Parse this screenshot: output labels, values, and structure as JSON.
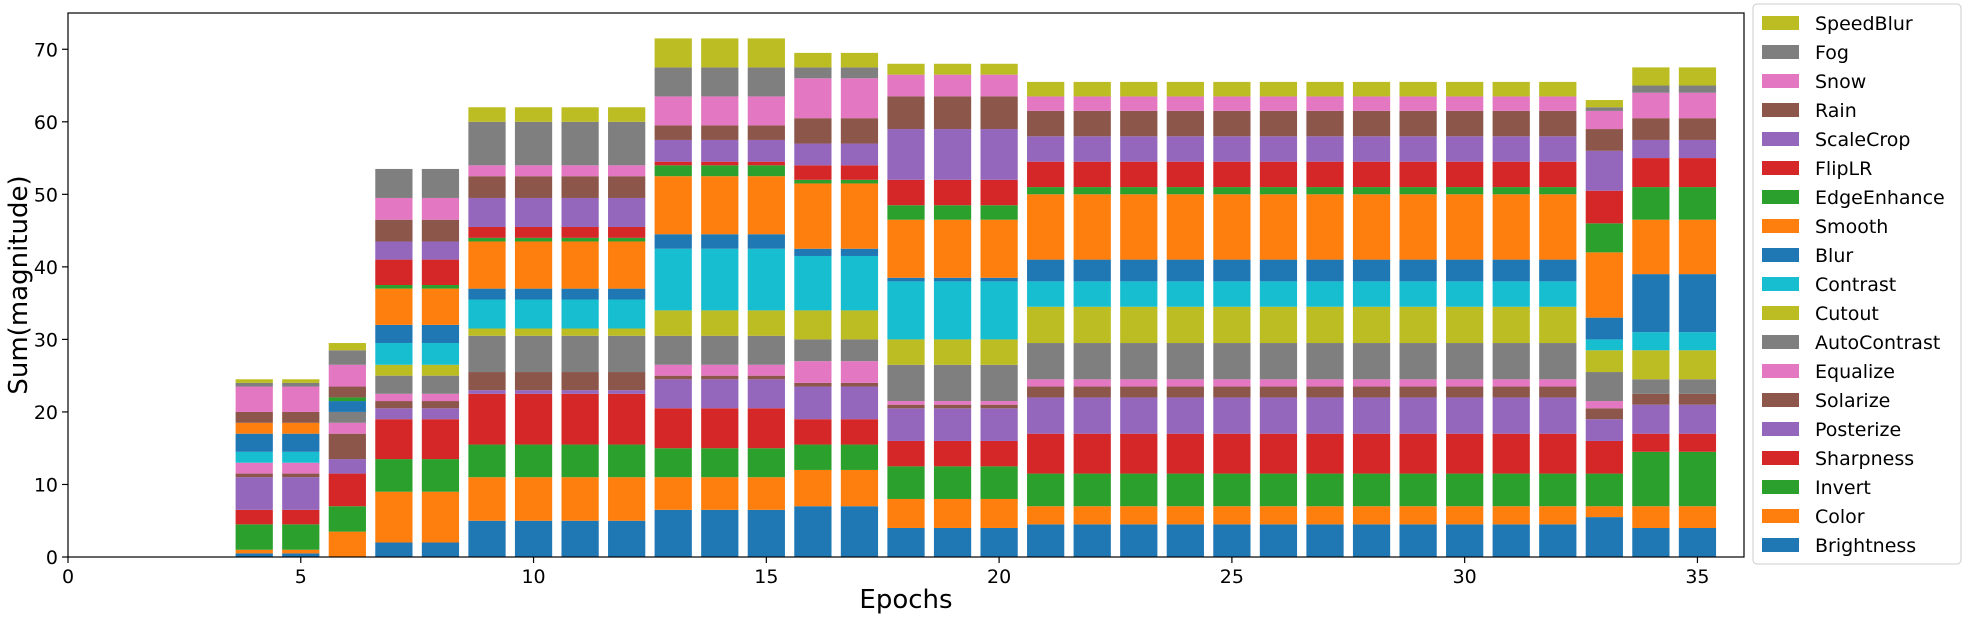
{
  "chart_data": {
    "type": "bar",
    "stacked": true,
    "title": "",
    "xlabel": "Epochs",
    "ylabel": "Sum(magnitude)",
    "xlim": [
      0,
      36
    ],
    "ylim": [
      0,
      75
    ],
    "xticks": [
      0,
      5,
      10,
      15,
      20,
      25,
      30,
      35
    ],
    "yticks": [
      0,
      10,
      20,
      30,
      40,
      50,
      60,
      70
    ],
    "legend_position": "outside-right",
    "grid": false,
    "x": [
      4,
      5,
      6,
      7,
      8,
      9,
      10,
      11,
      12,
      13,
      14,
      15,
      16,
      17,
      18,
      19,
      20,
      21,
      22,
      23,
      24,
      25,
      26,
      27,
      28,
      29,
      30,
      31,
      32,
      33,
      34,
      35
    ],
    "series": [
      {
        "name": "Brightness",
        "color": "#1f77b4",
        "values": [
          0.5,
          0.5,
          0,
          2,
          2,
          5,
          5,
          5,
          5,
          6.5,
          6.5,
          6.5,
          7,
          7,
          4,
          4,
          4,
          4.5,
          4.5,
          4.5,
          4.5,
          4.5,
          4.5,
          4.5,
          4.5,
          4.5,
          4.5,
          4.5,
          4.5,
          5.5,
          4,
          4
        ]
      },
      {
        "name": "Color",
        "color": "#ff7f0e",
        "values": [
          0.5,
          0.5,
          3.5,
          7,
          7,
          6,
          6,
          6,
          6,
          4.5,
          4.5,
          4.5,
          5,
          5,
          4,
          4,
          4,
          2.5,
          2.5,
          2.5,
          2.5,
          2.5,
          2.5,
          2.5,
          2.5,
          2.5,
          2.5,
          2.5,
          2.5,
          1.5,
          3,
          3
        ]
      },
      {
        "name": "Invert",
        "color": "#2ca02c",
        "values": [
          3.5,
          3.5,
          3.5,
          4.5,
          4.5,
          4.5,
          4.5,
          4.5,
          4.5,
          4,
          4,
          4,
          3.5,
          3.5,
          4.5,
          4.5,
          4.5,
          4.5,
          4.5,
          4.5,
          4.5,
          4.5,
          4.5,
          4.5,
          4.5,
          4.5,
          4.5,
          4.5,
          4.5,
          4.5,
          7.5,
          7.5
        ]
      },
      {
        "name": "Sharpness",
        "color": "#d62728",
        "values": [
          2,
          2,
          4.5,
          5.5,
          5.5,
          7,
          7,
          7,
          7,
          5.5,
          5.5,
          5.5,
          3.5,
          3.5,
          3.5,
          3.5,
          3.5,
          5.5,
          5.5,
          5.5,
          5.5,
          5.5,
          5.5,
          5.5,
          5.5,
          5.5,
          5.5,
          5.5,
          5.5,
          4.5,
          2.5,
          2.5
        ]
      },
      {
        "name": "Posterize",
        "color": "#9467bd",
        "values": [
          4.5,
          4.5,
          2,
          1.5,
          1.5,
          0.5,
          0.5,
          0.5,
          0.5,
          4,
          4,
          4,
          4.5,
          4.5,
          4.5,
          4.5,
          4.5,
          5,
          5,
          5,
          5,
          5,
          5,
          5,
          5,
          5,
          5,
          5,
          5,
          3,
          4,
          4
        ]
      },
      {
        "name": "Solarize",
        "color": "#8c564b",
        "values": [
          0.5,
          0.5,
          3.5,
          1,
          1,
          2.5,
          2.5,
          2.5,
          2.5,
          0.5,
          0.5,
          0.5,
          0.5,
          0.5,
          0.5,
          0.5,
          0.5,
          1.5,
          1.5,
          1.5,
          1.5,
          1.5,
          1.5,
          1.5,
          1.5,
          1.5,
          1.5,
          1.5,
          1.5,
          1.5,
          1.5,
          1.5
        ]
      },
      {
        "name": "Equalize",
        "color": "#e377c2",
        "values": [
          1.5,
          1.5,
          1.5,
          1,
          1,
          0,
          0,
          0,
          0,
          1.5,
          1.5,
          1.5,
          3,
          3,
          0.5,
          0.5,
          0.5,
          1,
          1,
          1,
          1,
          1,
          1,
          1,
          1,
          1,
          1,
          1,
          1,
          1,
          0,
          0
        ]
      },
      {
        "name": "AutoContrast",
        "color": "#7f7f7f",
        "values": [
          0,
          0,
          1.5,
          2.5,
          2.5,
          5,
          5,
          5,
          5,
          4,
          4,
          4,
          3,
          3,
          5,
          5,
          5,
          5,
          5,
          5,
          5,
          5,
          5,
          5,
          5,
          5,
          5,
          5,
          5,
          4,
          2,
          2
        ]
      },
      {
        "name": "Cutout",
        "color": "#bcbd22",
        "values": [
          0,
          0,
          0,
          1.5,
          1.5,
          1,
          1,
          1,
          1,
          3.5,
          3.5,
          3.5,
          4,
          4,
          3.5,
          3.5,
          3.5,
          5,
          5,
          5,
          5,
          5,
          5,
          5,
          5,
          5,
          5,
          5,
          5,
          3,
          4,
          4
        ]
      },
      {
        "name": "Contrast",
        "color": "#17becf",
        "values": [
          1.5,
          1.5,
          0,
          3,
          3,
          4,
          4,
          4,
          4,
          8.5,
          8.5,
          8.5,
          7.5,
          7.5,
          8,
          8,
          8,
          3.5,
          3.5,
          3.5,
          3.5,
          3.5,
          3.5,
          3.5,
          3.5,
          3.5,
          3.5,
          3.5,
          3.5,
          1.5,
          2.5,
          2.5
        ]
      },
      {
        "name": "Blur",
        "color": "#1f77b4",
        "values": [
          2.5,
          2.5,
          1.5,
          2.5,
          2.5,
          1.5,
          1.5,
          1.5,
          1.5,
          2,
          2,
          2,
          1,
          1,
          0.5,
          0.5,
          0.5,
          3,
          3,
          3,
          3,
          3,
          3,
          3,
          3,
          3,
          3,
          3,
          3,
          3,
          8,
          8
        ]
      },
      {
        "name": "Smooth",
        "color": "#ff7f0e",
        "values": [
          1.5,
          1.5,
          0,
          5,
          5,
          6.5,
          6.5,
          6.5,
          6.5,
          8,
          8,
          8,
          9,
          9,
          8,
          8,
          8,
          9,
          9,
          9,
          9,
          9,
          9,
          9,
          9,
          9,
          9,
          9,
          9,
          9,
          7.5,
          7.5
        ]
      },
      {
        "name": "EdgeEnhance",
        "color": "#2ca02c",
        "values": [
          0,
          0,
          0.5,
          0.5,
          0.5,
          0.5,
          0.5,
          0.5,
          0.5,
          1.5,
          1.5,
          1.5,
          0.5,
          0.5,
          2,
          2,
          2,
          1,
          1,
          1,
          1,
          1,
          1,
          1,
          1,
          1,
          1,
          1,
          1,
          4,
          4.5,
          4.5
        ]
      },
      {
        "name": "FlipLR",
        "color": "#d62728",
        "values": [
          0,
          0,
          0,
          3.5,
          3.5,
          1.5,
          1.5,
          1.5,
          1.5,
          0.5,
          0.5,
          0.5,
          2,
          2,
          3.5,
          3.5,
          3.5,
          3.5,
          3.5,
          3.5,
          3.5,
          3.5,
          3.5,
          3.5,
          3.5,
          3.5,
          3.5,
          3.5,
          3.5,
          4.5,
          4,
          4
        ]
      },
      {
        "name": "ScaleCrop",
        "color": "#9467bd",
        "values": [
          0,
          0,
          0,
          2.5,
          2.5,
          4,
          4,
          4,
          4,
          3,
          3,
          3,
          3,
          3,
          7,
          7,
          7,
          3.5,
          3.5,
          3.5,
          3.5,
          3.5,
          3.5,
          3.5,
          3.5,
          3.5,
          3.5,
          3.5,
          3.5,
          5.5,
          2.5,
          2.5
        ]
      },
      {
        "name": "Rain",
        "color": "#8c564b",
        "values": [
          1.5,
          1.5,
          1.5,
          3,
          3,
          3,
          3,
          3,
          3,
          2,
          2,
          2,
          3.5,
          3.5,
          4.5,
          4.5,
          4.5,
          3.5,
          3.5,
          3.5,
          3.5,
          3.5,
          3.5,
          3.5,
          3.5,
          3.5,
          3.5,
          3.5,
          3.5,
          3,
          3,
          3
        ]
      },
      {
        "name": "Snow",
        "color": "#e377c2",
        "values": [
          3.5,
          3.5,
          3,
          3,
          3,
          1.5,
          1.5,
          1.5,
          1.5,
          4,
          4,
          4,
          5.5,
          5.5,
          3,
          3,
          3,
          2,
          2,
          2,
          2,
          2,
          2,
          2,
          2,
          2,
          2,
          2,
          2,
          2.5,
          3.5,
          3.5
        ]
      },
      {
        "name": "Fog",
        "color": "#7f7f7f",
        "values": [
          0.5,
          0.5,
          2,
          4,
          4,
          6,
          6,
          6,
          6,
          4,
          4,
          4,
          1.5,
          1.5,
          0,
          0,
          0,
          0,
          0,
          0,
          0,
          0,
          0,
          0,
          0,
          0,
          0,
          0,
          0,
          0.5,
          1,
          1
        ]
      },
      {
        "name": "SpeedBlur",
        "color": "#bcbd22",
        "values": [
          0.5,
          0.5,
          1,
          0,
          0,
          2,
          2,
          2,
          2,
          4,
          4,
          4,
          2,
          2,
          1.5,
          1.5,
          1.5,
          2,
          2,
          2,
          2,
          2,
          2,
          2,
          2,
          2,
          2,
          2,
          2,
          1,
          2.5,
          2.5
        ]
      }
    ]
  }
}
